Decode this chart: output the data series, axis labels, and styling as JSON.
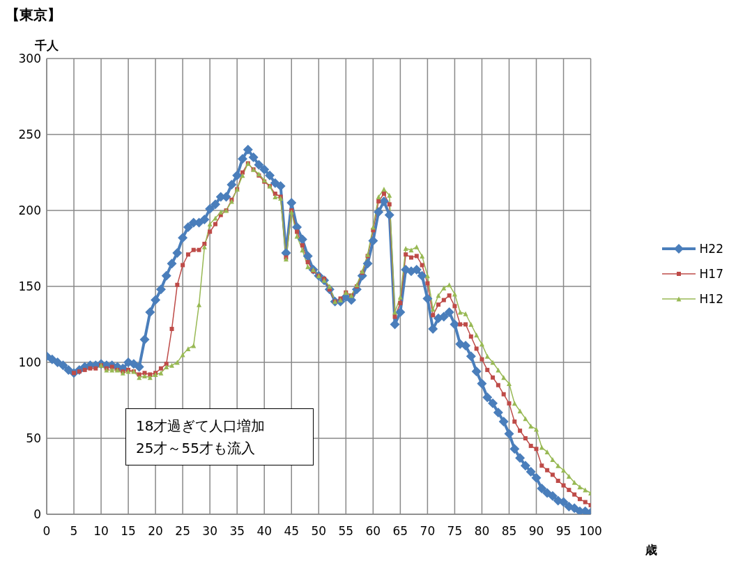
{
  "chart_data": {
    "type": "line",
    "title": "【東京】",
    "ylabel": "千人",
    "xlabel": "歳",
    "annotations": [
      "18才過ぎて人口増加\n25才～55才も流入"
    ],
    "x": [
      0,
      1,
      2,
      3,
      4,
      5,
      6,
      7,
      8,
      9,
      10,
      11,
      12,
      13,
      14,
      15,
      16,
      17,
      18,
      19,
      20,
      21,
      22,
      23,
      24,
      25,
      26,
      27,
      28,
      29,
      30,
      31,
      32,
      33,
      34,
      35,
      36,
      37,
      38,
      39,
      40,
      41,
      42,
      43,
      44,
      45,
      46,
      47,
      48,
      49,
      50,
      51,
      52,
      53,
      54,
      55,
      56,
      57,
      58,
      59,
      60,
      61,
      62,
      63,
      64,
      65,
      66,
      67,
      68,
      69,
      70,
      71,
      72,
      73,
      74,
      75,
      76,
      77,
      78,
      79,
      80,
      81,
      82,
      83,
      84,
      85,
      86,
      87,
      88,
      89,
      90,
      91,
      92,
      93,
      94,
      95,
      96,
      97,
      98,
      99,
      100
    ],
    "series": [
      {
        "name": "H22",
        "color": "#4a7ebb",
        "marker": "diamond",
        "values": [
          104,
          102,
          100,
          98,
          95,
          93,
          95,
          97,
          98,
          98,
          99,
          98,
          98,
          97,
          96,
          100,
          99,
          97,
          115,
          133,
          141,
          148,
          157,
          165,
          172,
          182,
          189,
          192,
          192,
          194,
          201,
          204,
          209,
          209,
          217,
          223,
          234,
          240,
          235,
          230,
          227,
          223,
          218,
          216,
          172,
          205,
          189,
          181,
          170,
          161,
          157,
          154,
          148,
          140,
          140,
          143,
          141,
          148,
          157,
          165,
          180,
          199,
          206,
          197,
          125,
          133,
          161,
          160,
          161,
          157,
          142,
          122,
          129,
          130,
          133,
          125,
          112,
          111,
          104,
          94,
          86,
          77,
          73,
          67,
          61,
          53,
          43,
          37,
          32,
          28,
          24,
          17,
          14,
          12,
          9,
          8,
          5,
          4,
          2,
          2,
          1
        ]
      },
      {
        "name": "H17",
        "color": "#be4b48",
        "marker": "square",
        "values": [
          null,
          null,
          null,
          null,
          null,
          93,
          94,
          95,
          96,
          96,
          98,
          96,
          97,
          95,
          94,
          95,
          94,
          92,
          93,
          92,
          93,
          96,
          99,
          122,
          151,
          164,
          171,
          174,
          174,
          178,
          186,
          191,
          197,
          200,
          207,
          214,
          225,
          231,
          227,
          223,
          219,
          216,
          211,
          209,
          169,
          200,
          186,
          177,
          166,
          160,
          157,
          155,
          148,
          140,
          142,
          146,
          144,
          150,
          159,
          170,
          187,
          206,
          211,
          204,
          130,
          139,
          171,
          169,
          170,
          164,
          152,
          131,
          138,
          141,
          144,
          137,
          125,
          125,
          117,
          109,
          102,
          95,
          90,
          85,
          79,
          73,
          61,
          55,
          50,
          45,
          43,
          32,
          29,
          26,
          22,
          19,
          16,
          13,
          10,
          8,
          6
        ]
      },
      {
        "name": "H12",
        "color": "#98b954",
        "marker": "triangle",
        "values": [
          null,
          null,
          null,
          null,
          null,
          null,
          null,
          null,
          null,
          null,
          98,
          95,
          95,
          95,
          93,
          94,
          94,
          90,
          91,
          90,
          92,
          93,
          97,
          98,
          100,
          105,
          109,
          111,
          138,
          176,
          191,
          195,
          199,
          200,
          206,
          214,
          223,
          231,
          227,
          224,
          220,
          216,
          209,
          208,
          168,
          199,
          183,
          174,
          163,
          161,
          157,
          154,
          150,
          140,
          141,
          146,
          144,
          151,
          160,
          171,
          189,
          209,
          214,
          210,
          133,
          143,
          175,
          174,
          176,
          170,
          157,
          135,
          144,
          149,
          151,
          145,
          133,
          132,
          125,
          118,
          112,
          104,
          100,
          95,
          90,
          86,
          73,
          68,
          63,
          58,
          56,
          44,
          41,
          36,
          32,
          29,
          25,
          21,
          18,
          16,
          14
        ]
      }
    ],
    "xlim": [
      0,
      100
    ],
    "xticks": [
      0,
      5,
      10,
      15,
      20,
      25,
      30,
      35,
      40,
      45,
      50,
      55,
      60,
      65,
      70,
      75,
      80,
      85,
      90,
      95,
      100
    ],
    "ylim": [
      0,
      300
    ],
    "yticks": [
      0,
      50,
      100,
      150,
      200,
      250,
      300
    ],
    "grid": true,
    "legend": "right"
  }
}
